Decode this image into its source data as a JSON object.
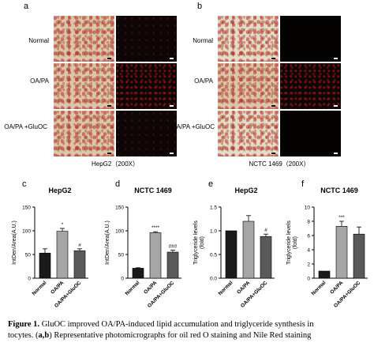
{
  "panel_a": {
    "letter": "a",
    "rows": [
      "Normal",
      "OA/PA",
      "OA/PA +GluOC"
    ],
    "caption": "HepG2（200X）"
  },
  "panel_b": {
    "letter": "b",
    "rows": [
      "Normal",
      "OA/PA",
      "OA/PA +GluOC"
    ],
    "caption": "NCTC 1469（200X）"
  },
  "chart_data": [
    {
      "letter": "c",
      "type": "bar",
      "title": "HepG2",
      "ylabel": "IntDen/Area(A.U.)",
      "categories": [
        "Normal",
        "OA/PA",
        "OA/PA+GluOC"
      ],
      "values": [
        53,
        99,
        58
      ],
      "errors": [
        9,
        6,
        4
      ],
      "colors": [
        "#1a1a1a",
        "#a6a6a6",
        "#5a5a5a"
      ],
      "ylim": [
        0,
        150
      ],
      "yticks": [
        "0",
        "50",
        "100",
        "150"
      ],
      "annotations": [
        "",
        "*",
        "#"
      ]
    },
    {
      "letter": "d",
      "type": "bar",
      "title": "NCTC 1469",
      "ylabel": "IntDen/Area(A.U.)",
      "categories": [
        "Normal",
        "OA/PA",
        "OA/PA+GluOC"
      ],
      "values": [
        21,
        96,
        55
      ],
      "errors": [
        1,
        2,
        4
      ],
      "colors": [
        "#1a1a1a",
        "#a6a6a6",
        "#5a5a5a"
      ],
      "ylim": [
        0,
        150
      ],
      "yticks": [
        "0",
        "50",
        "100",
        "150"
      ],
      "annotations": [
        "",
        "****",
        "###"
      ]
    },
    {
      "letter": "e",
      "type": "bar",
      "title": "HepG2",
      "ylabel": "Triglyceride levels (fold)",
      "categories": [
        "Normal",
        "OA/PA",
        "OA/PA+GluOC"
      ],
      "values": [
        1.0,
        1.2,
        0.88
      ],
      "errors": [
        0,
        0.12,
        0.05
      ],
      "colors": [
        "#1a1a1a",
        "#a6a6a6",
        "#5a5a5a"
      ],
      "ylim": [
        0,
        1.5
      ],
      "yticks": [
        "0.0",
        "0.5",
        "1.0",
        "1.5"
      ],
      "annotations": [
        "",
        "",
        "#"
      ]
    },
    {
      "letter": "f",
      "type": "bar",
      "title": "NCTC 1469",
      "ylabel": "Triglyceride levels (fold)",
      "categories": [
        "Normal",
        "OA/PA",
        "OA/PA+GluOC"
      ],
      "values": [
        1.0,
        7.3,
        6.2
      ],
      "errors": [
        0,
        0.7,
        1.0
      ],
      "colors": [
        "#1a1a1a",
        "#a6a6a6",
        "#5a5a5a"
      ],
      "ylim": [
        0,
        10
      ],
      "yticks": [
        "0",
        "2",
        "4",
        "6",
        "8",
        "10"
      ],
      "annotations": [
        "",
        "***",
        ""
      ]
    }
  ],
  "caption": {
    "label": "Figure 1.",
    "line1": " GluOC improved OA/PA-induced lipid accumulation and triglyceride synthesis in",
    "line2": "tocytes. (",
    "line2_bold": "a,b",
    "line2_rest": ") Representative photomicrographs for oil red O staining and Nile Red staining"
  }
}
